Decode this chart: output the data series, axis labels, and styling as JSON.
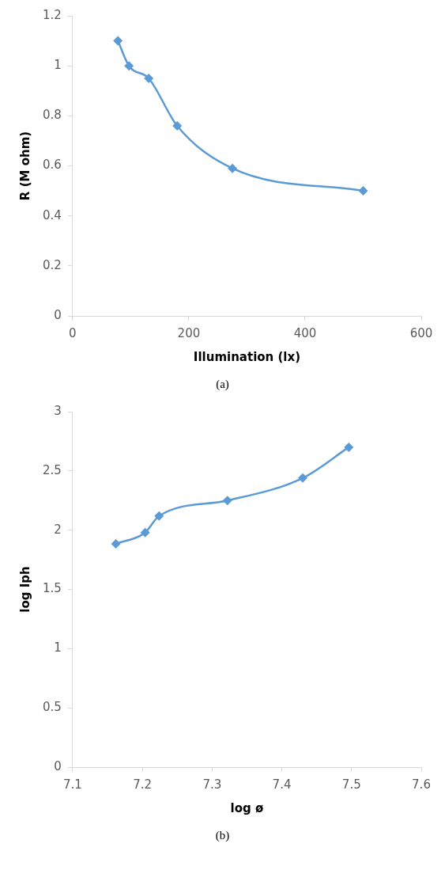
{
  "chart_data": [
    {
      "type": "line",
      "xlabel": "Illumination (lx)",
      "ylabel": "R (M ohm)",
      "x": [
        78,
        97,
        131,
        180,
        275,
        500
      ],
      "series": [
        {
          "color": "#5b9bd5",
          "values": [
            1.1,
            1.0,
            0.95,
            0.76,
            0.59,
            0.5
          ]
        }
      ],
      "xlim": [
        0,
        600
      ],
      "xticks": [
        0,
        200,
        400,
        600
      ],
      "ylim": [
        0,
        1.2
      ],
      "yticks": [
        0,
        0.2,
        0.4,
        0.6,
        0.8,
        1,
        1.2
      ],
      "grid": false,
      "legend": false,
      "marker": "diamond",
      "line_style": "solid",
      "annotations": [
        "(a)"
      ]
    },
    {
      "type": "line",
      "xlabel": "log ø",
      "ylabel": "log Iph",
      "x": [
        7.162,
        7.204,
        7.224,
        7.322,
        7.43,
        7.496
      ],
      "series": [
        {
          "color": "#5b9bd5",
          "values": [
            1.885,
            1.98,
            2.12,
            2.25,
            2.44,
            2.7
          ]
        }
      ],
      "xlim": [
        7.1,
        7.6
      ],
      "xticks": [
        7.1,
        7.2,
        7.3,
        7.4,
        7.5,
        7.6
      ],
      "ylim": [
        0,
        3
      ],
      "yticks": [
        0,
        0.5,
        1,
        1.5,
        2,
        2.5,
        3
      ],
      "grid": false,
      "legend": false,
      "marker": "diamond",
      "line_style": "solid",
      "annotations": [
        "(b)"
      ]
    }
  ]
}
